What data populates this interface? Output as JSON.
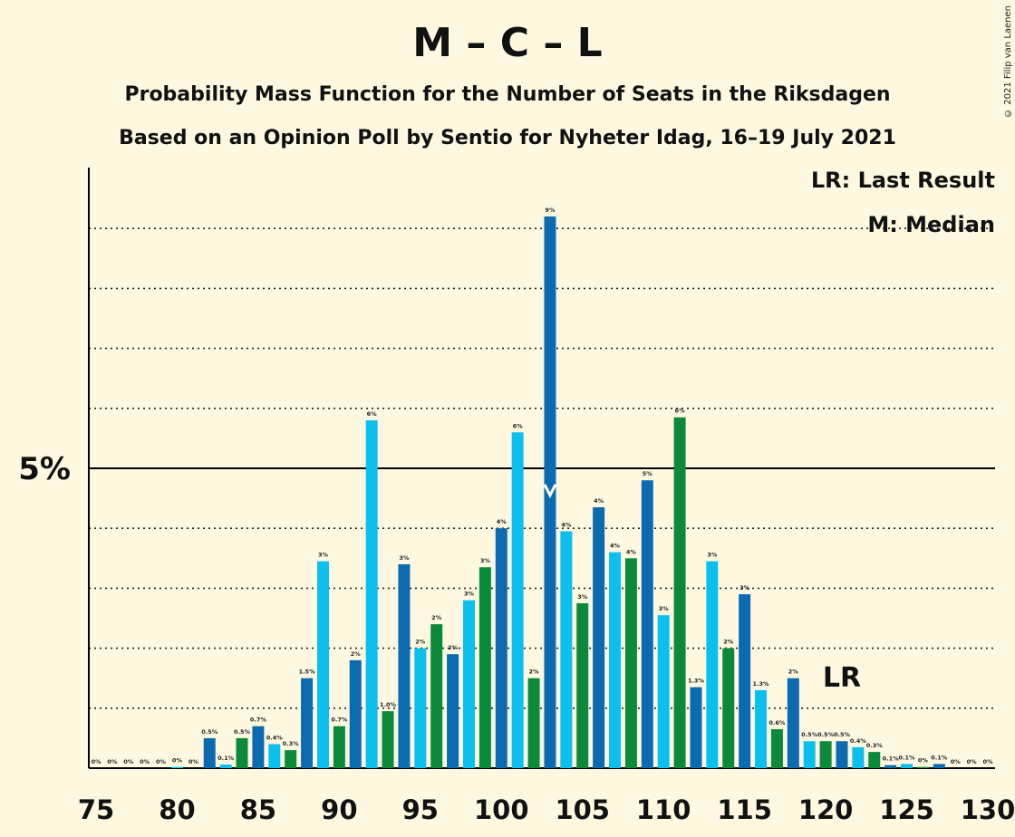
{
  "header": {
    "title": "M – C – L",
    "subtitle1": "Probability Mass Function for the Number of Seats in the Riksdagen",
    "subtitle2": "Based on an Opinion Poll by Sentio for Nyheter Idag, 16–19 July 2021",
    "copyright": "© 2021 Filip van Laenen"
  },
  "legend": {
    "last_result": "LR: Last Result",
    "median": "M: Median"
  },
  "colors": {
    "background": "#fff8e1",
    "dark_blue": "#0b6ab0",
    "light_blue": "#0bbfef",
    "green": "#0a8a3a"
  },
  "chart_data": {
    "type": "bar",
    "x": [
      75,
      76,
      77,
      78,
      79,
      80,
      81,
      82,
      83,
      84,
      85,
      86,
      87,
      88,
      89,
      90,
      91,
      92,
      93,
      94,
      95,
      96,
      97,
      98,
      99,
      100,
      101,
      102,
      103,
      104,
      105,
      106,
      107,
      108,
      109,
      110,
      111,
      112,
      113,
      114,
      115,
      116,
      117,
      118,
      119,
      120,
      121,
      122,
      123,
      124,
      125,
      126,
      127,
      128,
      129,
      130
    ],
    "values": [
      0,
      0,
      0,
      0,
      0,
      0.02,
      0,
      0.5,
      0.06,
      0.5,
      0.7,
      0.4,
      0.3,
      1.5,
      3.45,
      0.7,
      1.8,
      5.8,
      0.95,
      3.4,
      2.0,
      2.4,
      1.9,
      2.8,
      3.35,
      4.0,
      5.6,
      1.5,
      9.2,
      3.95,
      2.75,
      4.35,
      3.6,
      3.5,
      4.8,
      2.55,
      5.85,
      1.35,
      3.45,
      2.0,
      2.9,
      1.3,
      0.65,
      1.5,
      0.45,
      0.45,
      0.45,
      0.35,
      0.27,
      0.05,
      0.07,
      0.02,
      0.07,
      0,
      0,
      0
    ],
    "labels": [
      "0%",
      "0%",
      "0%",
      "0%",
      "0%",
      "0%",
      "0%",
      "0.5%",
      "0.1%",
      "0.5%",
      "0.7%",
      "0.4%",
      "0.3%",
      "1.5%",
      "3%",
      "0.7%",
      "2%",
      "6%",
      "1.0%",
      "3%",
      "2%",
      "2%",
      "2%",
      "3%",
      "3%",
      "4%",
      "6%",
      "2%",
      "9%",
      "4%",
      "3%",
      "4%",
      "4%",
      "4%",
      "5%",
      "3%",
      "6%",
      "1.3%",
      "3%",
      "2%",
      "3%",
      "1.3%",
      "0.6%",
      "2%",
      "0.5%",
      "0.5%",
      "0.5%",
      "0.4%",
      "0.3%",
      "0.1%",
      "0.1%",
      "0%",
      "0.1%",
      "0%",
      "0%",
      "0%"
    ],
    "colors": [
      "green",
      "dark_blue",
      "light_blue",
      "green",
      "dark_blue",
      "light_blue",
      "green",
      "dark_blue",
      "light_blue",
      "green",
      "dark_blue",
      "light_blue",
      "green",
      "dark_blue",
      "light_blue",
      "green",
      "dark_blue",
      "light_blue",
      "green",
      "dark_blue",
      "light_blue",
      "green",
      "dark_blue",
      "light_blue",
      "green",
      "dark_blue",
      "light_blue",
      "green",
      "dark_blue",
      "light_blue",
      "green",
      "dark_blue",
      "light_blue",
      "green",
      "dark_blue",
      "light_blue",
      "green",
      "dark_blue",
      "light_blue",
      "green",
      "dark_blue",
      "light_blue",
      "green",
      "dark_blue",
      "light_blue",
      "green",
      "dark_blue",
      "light_blue",
      "green",
      "dark_blue",
      "light_blue",
      "green",
      "dark_blue",
      "light_blue",
      "green",
      "dark_blue"
    ],
    "x_ticks": [
      75,
      80,
      85,
      90,
      95,
      100,
      105,
      110,
      115,
      120,
      125,
      130
    ],
    "y_tick_label": "5%",
    "y_tick_value": 5,
    "ylim": [
      0,
      10
    ],
    "gridlines": [
      1,
      2,
      3,
      4,
      5,
      6,
      7,
      8,
      9
    ],
    "median_seat": 103,
    "last_result_seat": 121,
    "last_result_label": "LR"
  }
}
